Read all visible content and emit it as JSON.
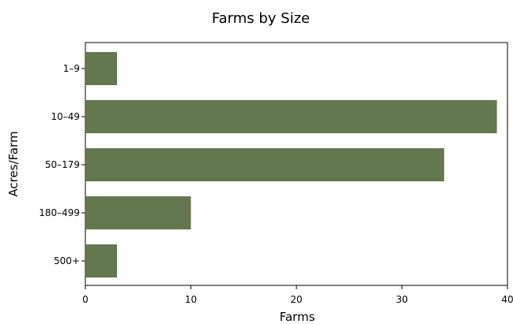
{
  "chart_data": {
    "type": "bar",
    "orientation": "horizontal",
    "title": "Farms by Size",
    "xlabel": "Farms",
    "ylabel": "Acres/Farm",
    "categories": [
      "1–9",
      "10–49",
      "50–179",
      "180–499",
      "500+"
    ],
    "values": [
      3,
      39,
      34,
      10,
      3
    ],
    "xlim": [
      0,
      40
    ],
    "xticks": [
      "0",
      "10",
      "20",
      "30",
      "40"
    ],
    "bar_color": "#63784e",
    "grid": false,
    "legend": "none"
  }
}
